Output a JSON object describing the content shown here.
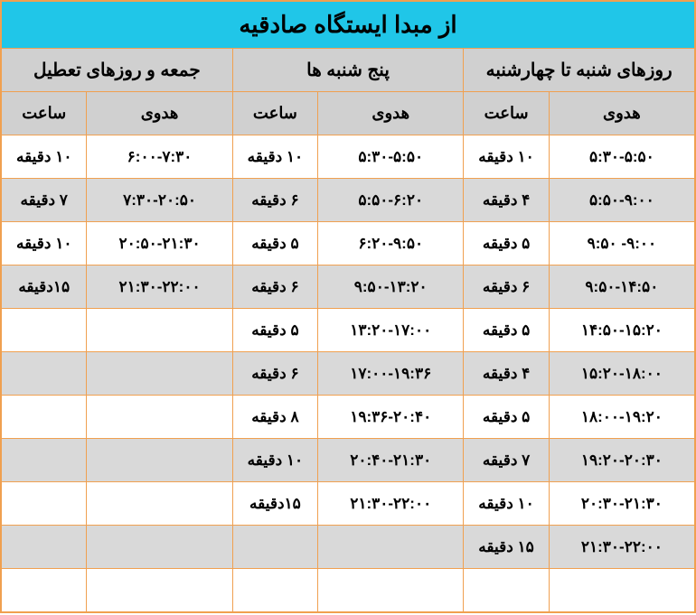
{
  "title": "از مبدا ایستگاه صادقیه",
  "groups": [
    {
      "label": "روزهای شنبه تا چهارشنبه",
      "time_header": "هدوی",
      "freq_header": "ساعت"
    },
    {
      "label": "پنج شنبه ها",
      "time_header": "هدوی",
      "freq_header": "ساعت"
    },
    {
      "label": "جمعه و روزهای تعطیل",
      "time_header": "هدوی",
      "freq_header": "ساعت"
    }
  ],
  "rows": [
    {
      "alt": false,
      "c": [
        {
          "t": "۵:۳۰-۵:۵۰",
          "f": "۱۰ دقیقه"
        },
        {
          "t": "۵:۳۰-۵:۵۰",
          "f": "۱۰ دقیقه"
        },
        {
          "t": "۶:۰۰-۷:۳۰",
          "f": "۱۰ دقیقه"
        }
      ]
    },
    {
      "alt": true,
      "c": [
        {
          "t": "۵:۵۰-۹:۰۰",
          "f": "۴ دقیقه"
        },
        {
          "t": "۵:۵۰-۶:۲۰",
          "f": "۶ دقیقه"
        },
        {
          "t": "۷:۳۰-۲۰:۵۰",
          "f": "۷ دقیقه"
        }
      ]
    },
    {
      "alt": false,
      "c": [
        {
          "t": "۹:۰۰- ۹:۵۰",
          "f": "۵ دقیقه"
        },
        {
          "t": "۶:۲۰-۹:۵۰",
          "f": "۵ دقیقه"
        },
        {
          "t": "۲۰:۵۰-۲۱:۳۰",
          "f": "۱۰ دقیقه"
        }
      ]
    },
    {
      "alt": true,
      "c": [
        {
          "t": "۹:۵۰-۱۴:۵۰",
          "f": "۶ دقیقه"
        },
        {
          "t": "۹:۵۰-۱۳:۲۰",
          "f": "۶ دقیقه"
        },
        {
          "t": "۲۱:۳۰-۲۲:۰۰",
          "f": "۱۵دقیقه"
        }
      ]
    },
    {
      "alt": false,
      "c": [
        {
          "t": "۱۴:۵۰-۱۵:۲۰",
          "f": "۵ دقیقه"
        },
        {
          "t": "۱۳:۲۰-۱۷:۰۰",
          "f": "۵ دقیقه"
        },
        {
          "t": "",
          "f": ""
        }
      ]
    },
    {
      "alt": true,
      "c": [
        {
          "t": "۱۵:۲۰-۱۸:۰۰",
          "f": "۴ دقیقه"
        },
        {
          "t": "۱۷:۰۰-۱۹:۳۶",
          "f": "۶ دقیقه"
        },
        {
          "t": "",
          "f": ""
        }
      ]
    },
    {
      "alt": false,
      "c": [
        {
          "t": "۱۸:۰۰-۱۹:۲۰",
          "f": "۵ دقیقه"
        },
        {
          "t": "۱۹:۳۶-۲۰:۴۰",
          "f": "۸ دقیقه"
        },
        {
          "t": "",
          "f": ""
        }
      ]
    },
    {
      "alt": true,
      "c": [
        {
          "t": "۱۹:۲۰-۲۰:۳۰",
          "f": "۷ دقیقه"
        },
        {
          "t": "۲۰:۴۰-۲۱:۳۰",
          "f": "۱۰ دقیقه"
        },
        {
          "t": "",
          "f": ""
        }
      ]
    },
    {
      "alt": false,
      "c": [
        {
          "t": "۲۰:۳۰-۲۱:۳۰",
          "f": "۱۰ دقیقه"
        },
        {
          "t": "۲۱:۳۰-۲۲:۰۰",
          "f": "۱۵دقیقه"
        },
        {
          "t": "",
          "f": ""
        }
      ]
    },
    {
      "alt": true,
      "c": [
        {
          "t": "۲۱:۳۰-۲۲:۰۰",
          "f": "۱۵ دقیقه"
        },
        {
          "t": "",
          "f": ""
        },
        {
          "t": "",
          "f": ""
        }
      ]
    },
    {
      "alt": false,
      "c": [
        {
          "t": "",
          "f": ""
        },
        {
          "t": "",
          "f": ""
        },
        {
          "t": "",
          "f": ""
        }
      ]
    }
  ]
}
